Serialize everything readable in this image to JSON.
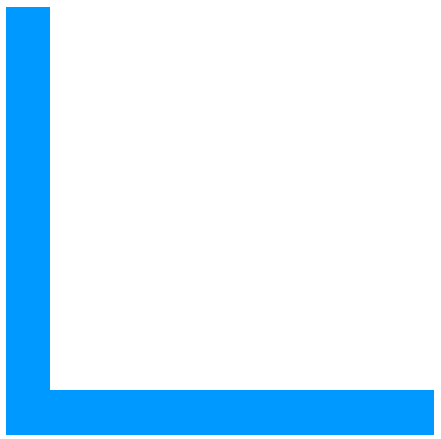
{
  "shape": {
    "name": "l-shape",
    "color": "#0099FF",
    "background": "#FFFFFF"
  }
}
